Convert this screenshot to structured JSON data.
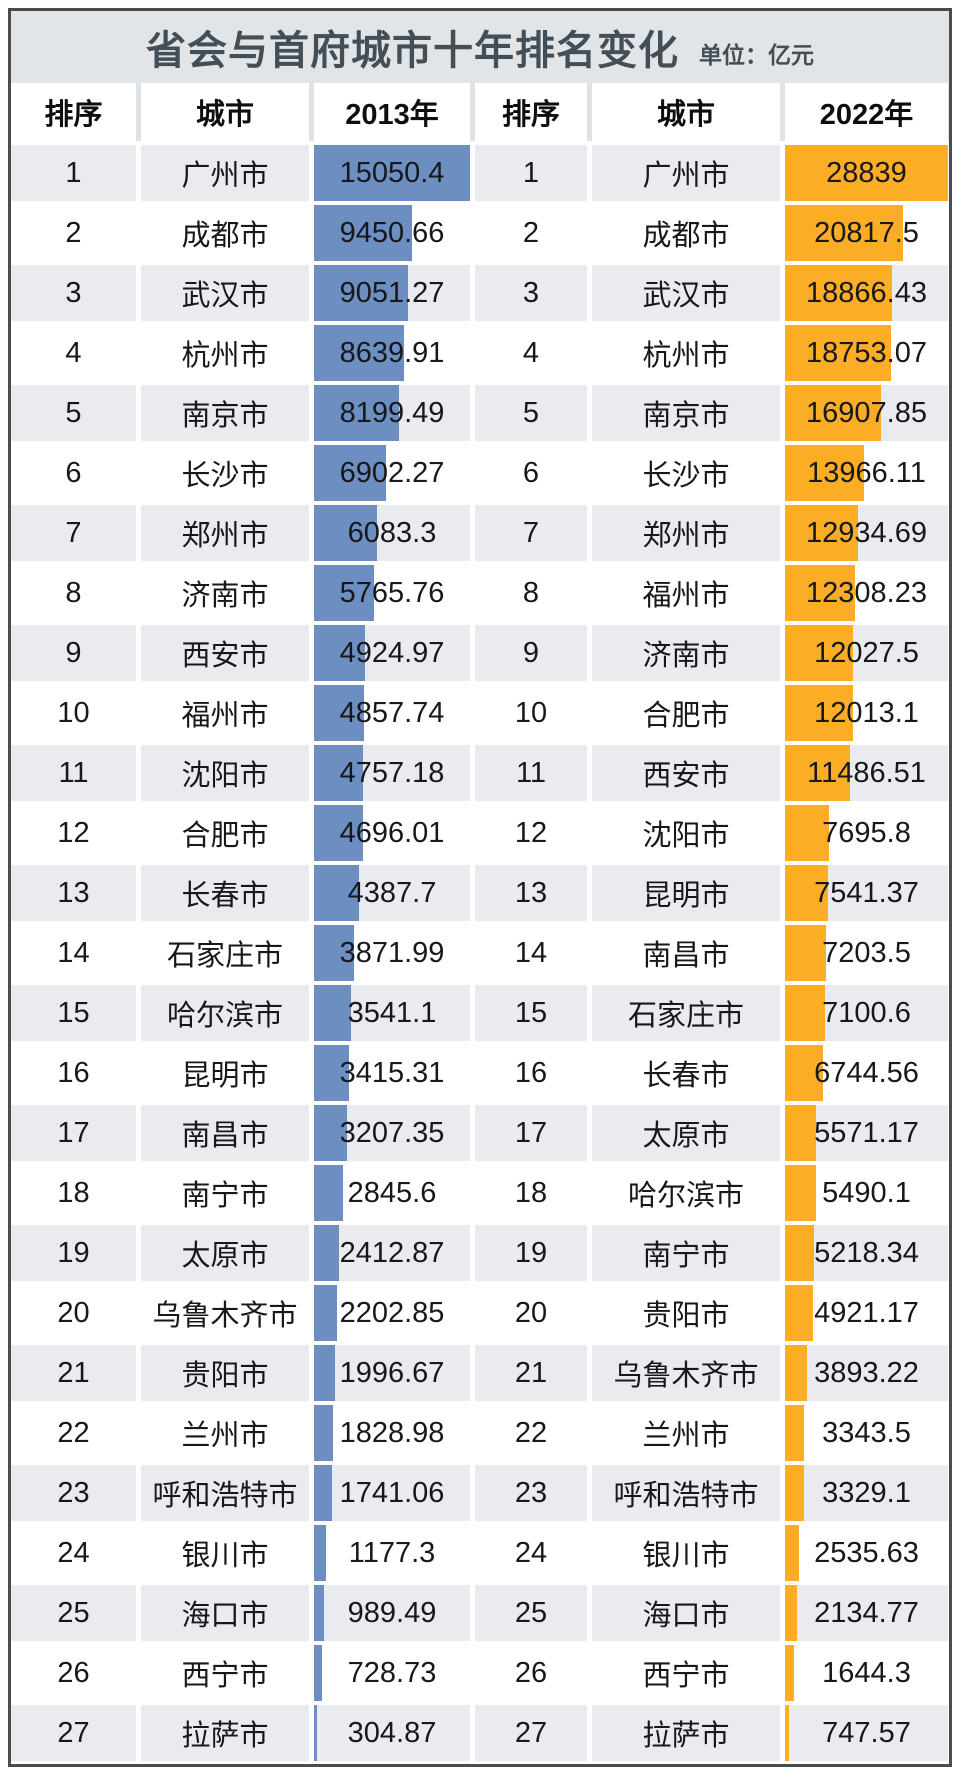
{
  "title": "省会与首府城市十年排名变化",
  "unit_label": "单位：亿元",
  "columns": {
    "rank": "排序",
    "city": "城市",
    "year_left": "2013年",
    "year_right": "2022年"
  },
  "colors": {
    "bar_2013": "#6c8ec1",
    "bar_2022": "#fbad26",
    "row_odd": "#e9ebee",
    "row_even": "#ffffff",
    "title_band": "#e1e5e8",
    "title_text": "#434e56",
    "border": "#4c4c4e"
  },
  "chart_data": {
    "type": "bar",
    "title": "省会与首府城市十年排名变化",
    "unit": "亿元",
    "legend_position": "column-headers",
    "series": [
      {
        "name": "2013年",
        "color": "#6c8ec1",
        "max": 15050.4,
        "rows": [
          {
            "rank": 1,
            "city": "广州市",
            "value": 15050.4
          },
          {
            "rank": 2,
            "city": "成都市",
            "value": 9450.66
          },
          {
            "rank": 3,
            "city": "武汉市",
            "value": 9051.27
          },
          {
            "rank": 4,
            "city": "杭州市",
            "value": 8639.91
          },
          {
            "rank": 5,
            "city": "南京市",
            "value": 8199.49
          },
          {
            "rank": 6,
            "city": "长沙市",
            "value": 6902.27
          },
          {
            "rank": 7,
            "city": "郑州市",
            "value": 6083.3
          },
          {
            "rank": 8,
            "city": "济南市",
            "value": 5765.76
          },
          {
            "rank": 9,
            "city": "西安市",
            "value": 4924.97
          },
          {
            "rank": 10,
            "city": "福州市",
            "value": 4857.74
          },
          {
            "rank": 11,
            "city": "沈阳市",
            "value": 4757.18
          },
          {
            "rank": 12,
            "city": "合肥市",
            "value": 4696.01
          },
          {
            "rank": 13,
            "city": "长春市",
            "value": 4387.7
          },
          {
            "rank": 14,
            "city": "石家庄市",
            "value": 3871.99
          },
          {
            "rank": 15,
            "city": "哈尔滨市",
            "value": 3541.1
          },
          {
            "rank": 16,
            "city": "昆明市",
            "value": 3415.31
          },
          {
            "rank": 17,
            "city": "南昌市",
            "value": 3207.35
          },
          {
            "rank": 18,
            "city": "南宁市",
            "value": 2845.6
          },
          {
            "rank": 19,
            "city": "太原市",
            "value": 2412.87
          },
          {
            "rank": 20,
            "city": "乌鲁木齐市",
            "value": 2202.85
          },
          {
            "rank": 21,
            "city": "贵阳市",
            "value": 1996.67
          },
          {
            "rank": 22,
            "city": "兰州市",
            "value": 1828.98
          },
          {
            "rank": 23,
            "city": "呼和浩特市",
            "value": 1741.06
          },
          {
            "rank": 24,
            "city": "银川市",
            "value": 1177.3
          },
          {
            "rank": 25,
            "city": "海口市",
            "value": 989.49
          },
          {
            "rank": 26,
            "city": "西宁市",
            "value": 728.73
          },
          {
            "rank": 27,
            "city": "拉萨市",
            "value": 304.87
          }
        ]
      },
      {
        "name": "2022年",
        "color": "#fbad26",
        "max": 28839,
        "rows": [
          {
            "rank": 1,
            "city": "广州市",
            "value": 28839
          },
          {
            "rank": 2,
            "city": "成都市",
            "value": 20817.5
          },
          {
            "rank": 3,
            "city": "武汉市",
            "value": 18866.43
          },
          {
            "rank": 4,
            "city": "杭州市",
            "value": 18753.07
          },
          {
            "rank": 5,
            "city": "南京市",
            "value": 16907.85
          },
          {
            "rank": 6,
            "city": "长沙市",
            "value": 13966.11
          },
          {
            "rank": 7,
            "city": "郑州市",
            "value": 12934.69
          },
          {
            "rank": 8,
            "city": "福州市",
            "value": 12308.23
          },
          {
            "rank": 9,
            "city": "济南市",
            "value": 12027.5
          },
          {
            "rank": 10,
            "city": "合肥市",
            "value": 12013.1
          },
          {
            "rank": 11,
            "city": "西安市",
            "value": 11486.51
          },
          {
            "rank": 12,
            "city": "沈阳市",
            "value": 7695.8
          },
          {
            "rank": 13,
            "city": "昆明市",
            "value": 7541.37
          },
          {
            "rank": 14,
            "city": "南昌市",
            "value": 7203.5
          },
          {
            "rank": 15,
            "city": "石家庄市",
            "value": 7100.6
          },
          {
            "rank": 16,
            "city": "长春市",
            "value": 6744.56
          },
          {
            "rank": 17,
            "city": "太原市",
            "value": 5571.17
          },
          {
            "rank": 18,
            "city": "哈尔滨市",
            "value": 5490.1
          },
          {
            "rank": 19,
            "city": "南宁市",
            "value": 5218.34
          },
          {
            "rank": 20,
            "city": "贵阳市",
            "value": 4921.17
          },
          {
            "rank": 21,
            "city": "乌鲁木齐市",
            "value": 3893.22
          },
          {
            "rank": 22,
            "city": "兰州市",
            "value": 3343.5
          },
          {
            "rank": 23,
            "city": "呼和浩特市",
            "value": 3329.1
          },
          {
            "rank": 24,
            "city": "银川市",
            "value": 2535.63
          },
          {
            "rank": 25,
            "city": "海口市",
            "value": 2134.77
          },
          {
            "rank": 26,
            "city": "西宁市",
            "value": 1644.3
          },
          {
            "rank": 27,
            "city": "拉萨市",
            "value": 747.57
          }
        ]
      }
    ]
  }
}
